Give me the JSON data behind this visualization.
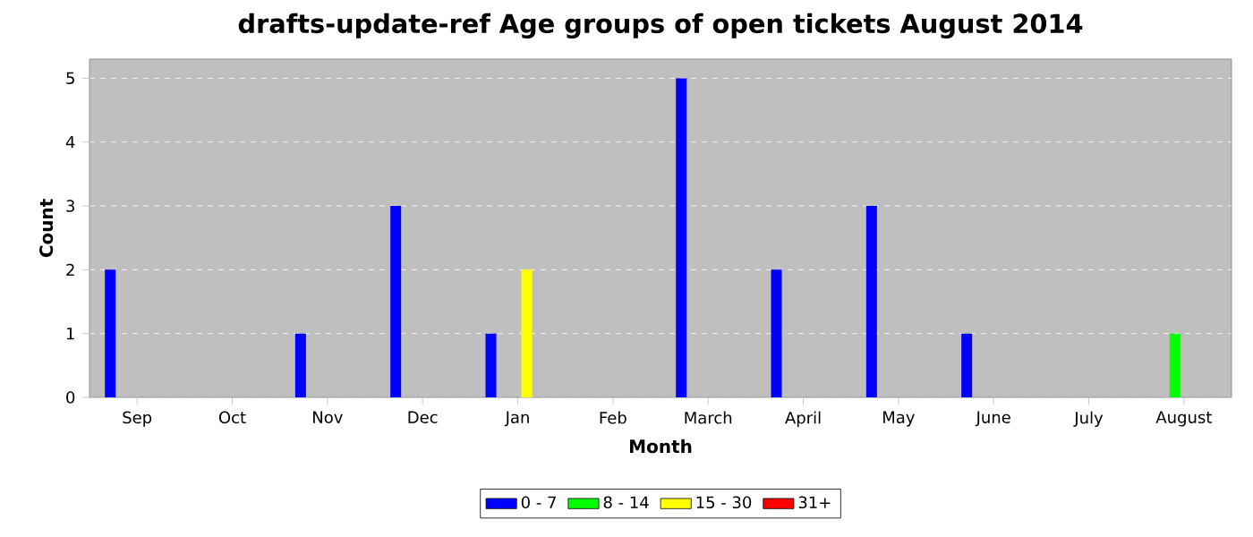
{
  "chart_data": {
    "type": "bar",
    "title": "drafts-update-ref Age groups of open tickets August 2014",
    "xlabel": "Month",
    "ylabel": "Count",
    "categories": [
      "Sep",
      "Oct",
      "Nov",
      "Dec",
      "Jan",
      "Feb",
      "March",
      "April",
      "May",
      "June",
      "July",
      "August"
    ],
    "series": [
      {
        "name": "0 - 7",
        "color": "#0000ff",
        "values": [
          2,
          0,
          1,
          3,
          1,
          0,
          5,
          2,
          3,
          1,
          0,
          0
        ]
      },
      {
        "name": "8 - 14",
        "color": "#00ff00",
        "values": [
          0,
          0,
          0,
          0,
          0,
          0,
          0,
          0,
          0,
          0,
          0,
          1
        ]
      },
      {
        "name": "15 - 30",
        "color": "#ffff00",
        "values": [
          0,
          0,
          0,
          0,
          2,
          0,
          0,
          0,
          0,
          0,
          0,
          0
        ]
      },
      {
        "name": "31+",
        "color": "#ff0000",
        "values": [
          0,
          0,
          0,
          0,
          0,
          0,
          0,
          0,
          0,
          0,
          0,
          0
        ]
      }
    ],
    "ylim": [
      0,
      5.3
    ],
    "yticks": [
      0,
      1,
      2,
      3,
      4,
      5
    ],
    "grid": "y",
    "legend": "bottom"
  }
}
